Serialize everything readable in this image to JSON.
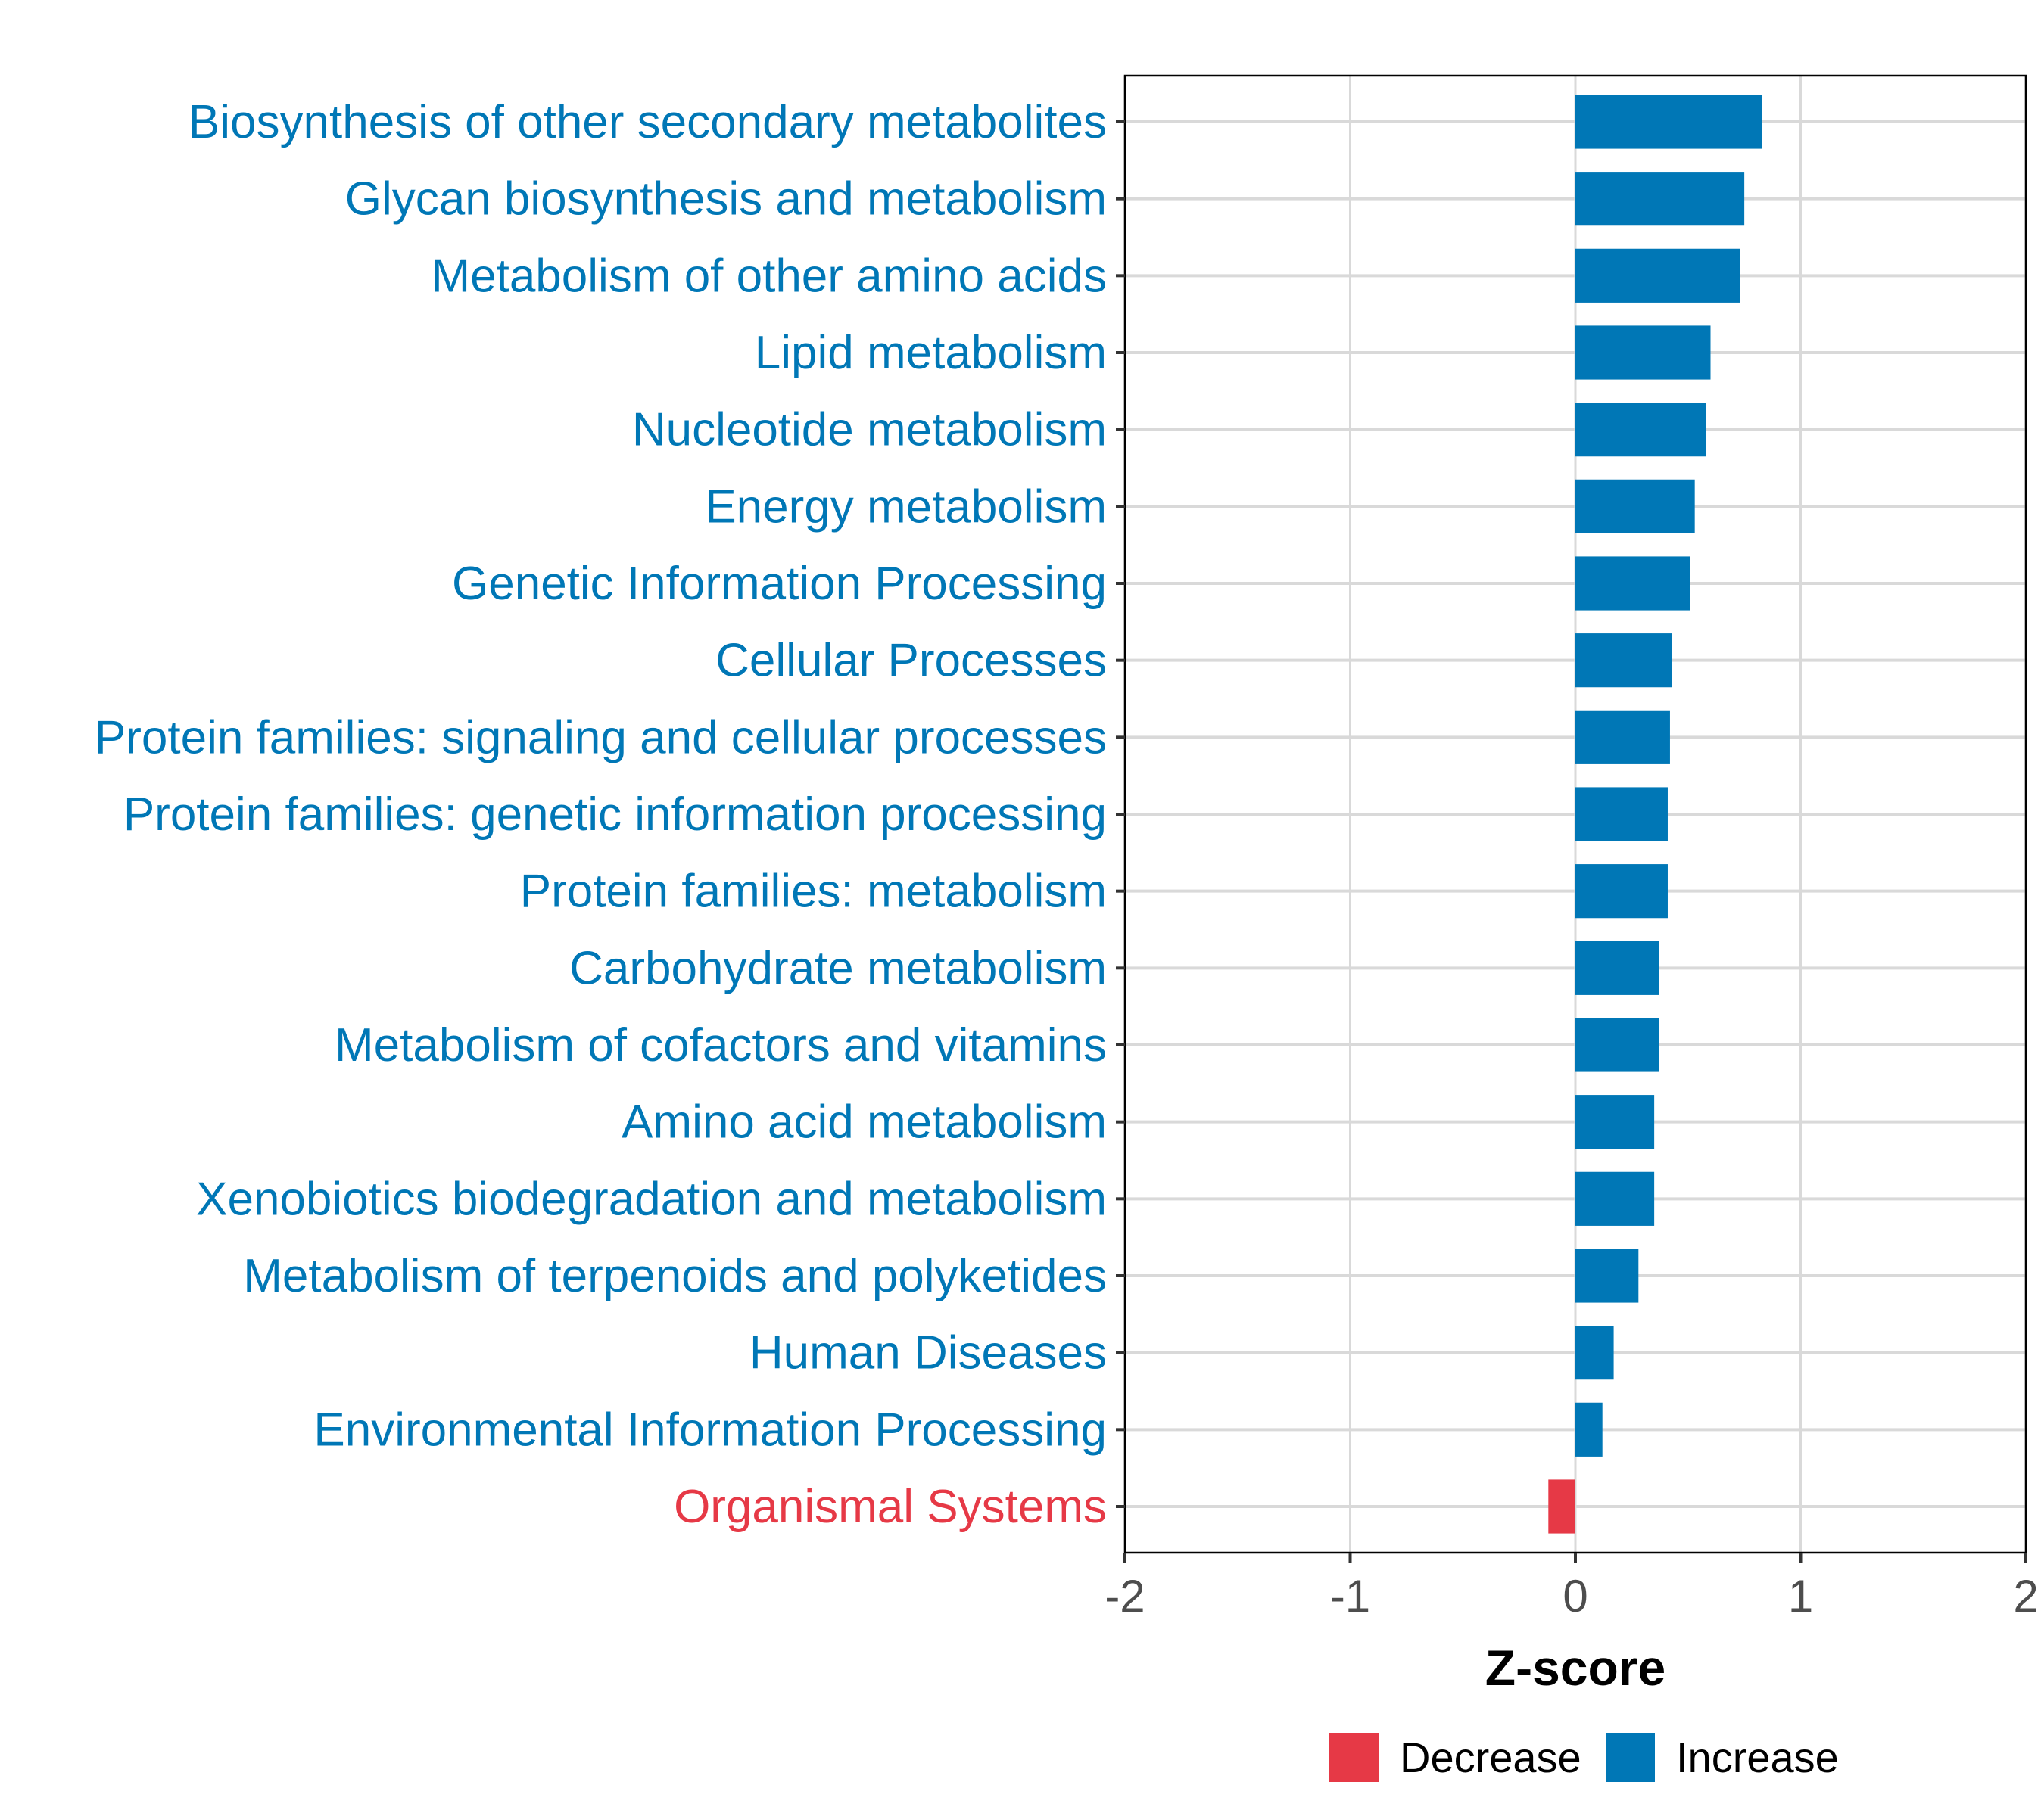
{
  "chart_data": {
    "type": "bar",
    "orientation": "horizontal",
    "title": "",
    "xlabel": "Z-score",
    "ylabel": "",
    "xlim": [
      -2,
      2
    ],
    "xticks": [
      -2,
      -1,
      0,
      1,
      2
    ],
    "xtick_labels": [
      "-2",
      "-1",
      "0",
      "1",
      "2"
    ],
    "grid": true,
    "legend_position": "bottom",
    "colors": {
      "Decrease": "#E63946",
      "Increase": "#0077B6"
    },
    "categories": [
      "Biosynthesis of other secondary metabolites",
      "Glycan biosynthesis and metabolism",
      "Metabolism of other amino acids",
      "Lipid metabolism",
      "Nucleotide metabolism",
      "Energy metabolism",
      "Genetic Information Processing",
      "Cellular Processes",
      "Protein families: signaling and cellular processes",
      "Protein families: genetic information processing",
      "Protein families: metabolism",
      "Carbohydrate metabolism",
      "Metabolism of cofactors and vitamins",
      "Amino acid metabolism",
      "Xenobiotics biodegradation and metabolism",
      "Metabolism of terpenoids and polyketides",
      "Human Diseases",
      "Environmental Information Processing",
      "Organismal Systems"
    ],
    "values": [
      0.83,
      0.75,
      0.73,
      0.6,
      0.58,
      0.53,
      0.51,
      0.43,
      0.42,
      0.41,
      0.41,
      0.37,
      0.37,
      0.35,
      0.35,
      0.28,
      0.17,
      0.12,
      -0.12
    ],
    "groups": [
      "Increase",
      "Increase",
      "Increase",
      "Increase",
      "Increase",
      "Increase",
      "Increase",
      "Increase",
      "Increase",
      "Increase",
      "Increase",
      "Increase",
      "Increase",
      "Increase",
      "Increase",
      "Increase",
      "Increase",
      "Increase",
      "Decrease"
    ],
    "legend": [
      {
        "label": "Decrease",
        "color": "#E63946"
      },
      {
        "label": "Increase",
        "color": "#0077B6"
      }
    ]
  }
}
